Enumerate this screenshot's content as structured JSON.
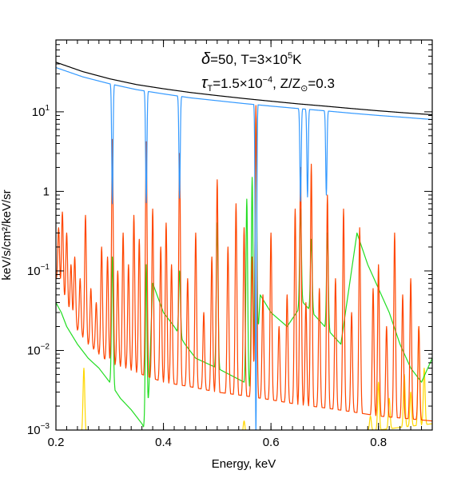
{
  "chart_data": {
    "type": "line",
    "title": "",
    "xlabel": "Energy, keV",
    "ylabel": "keV/s/cm²/keV/sr",
    "xlim": [
      0.2,
      0.9
    ],
    "ylim": [
      0.001,
      80
    ],
    "y_scale": "log",
    "grid": false,
    "legend": "none",
    "x_ticks": [
      {
        "value": 0.2,
        "label": "0.2"
      },
      {
        "value": 0.4,
        "label": "0.4"
      },
      {
        "value": 0.6,
        "label": "0.6"
      },
      {
        "value": 0.8,
        "label": "0.8"
      }
    ],
    "y_ticks": [
      {
        "value": 0.001,
        "base": "10",
        "exp": "−3"
      },
      {
        "value": 0.01,
        "base": "10",
        "exp": "−2"
      },
      {
        "value": 0.1,
        "base": "10",
        "exp": "−1"
      },
      {
        "value": 1,
        "base": "1",
        "exp": ""
      },
      {
        "value": 10,
        "base": "10",
        "exp": "1"
      }
    ],
    "annotations": {
      "line1": {
        "delta_symbol": "δ",
        "delta_value": "=50,  T=3×10",
        "T_exp": "5",
        "T_unit": "K"
      },
      "line2": {
        "tau_symbol": "τ",
        "tau_sub": "T",
        "tau_value": "=1.5×10",
        "tau_exp": "−4",
        "z_text": ",  Z/Z",
        "z_sub": "⊙",
        "z_value": "=0.3"
      }
    },
    "series": [
      {
        "color": "#000000",
        "style": "smooth",
        "x": [
          0.2,
          0.25,
          0.3,
          0.35,
          0.4,
          0.45,
          0.5,
          0.55,
          0.6,
          0.65,
          0.7,
          0.75,
          0.8,
          0.85,
          0.9
        ],
        "values": [
          42,
          32,
          26,
          22,
          19.5,
          17.5,
          16,
          14.7,
          13.6,
          12.6,
          11.8,
          11,
          10.3,
          9.7,
          9.2
        ]
      },
      {
        "color": "#3399ff",
        "style": "smooth",
        "x": [
          0.2,
          0.25,
          0.3,
          0.35,
          0.4,
          0.45,
          0.5,
          0.55,
          0.6,
          0.65,
          0.7,
          0.75,
          0.8,
          0.85,
          0.9
        ],
        "values": [
          36,
          27.5,
          22.5,
          19,
          16.8,
          15,
          13.8,
          12.7,
          11.8,
          11,
          10.3,
          9.6,
          9,
          8.5,
          8
        ],
        "lines": [
          {
            "x": 0.305,
            "value": 0.7
          },
          {
            "x": 0.368,
            "value": 0.72
          },
          {
            "x": 0.43,
            "value": 0.82
          },
          {
            "x": 0.572,
            "value": 0.0008
          },
          {
            "x": 0.655,
            "value": 0.75
          },
          {
            "x": 0.668,
            "value": 0.85
          },
          {
            "x": 0.703,
            "value": 0.9
          }
        ]
      },
      {
        "color": "#ff4500",
        "style": "lines",
        "x": [
          0.2,
          0.22,
          0.24,
          0.26,
          0.28,
          0.3,
          0.33,
          0.36,
          0.4,
          0.45,
          0.5,
          0.55,
          0.6,
          0.65,
          0.7,
          0.75,
          0.8,
          0.85,
          0.9
        ],
        "values": [
          0.08,
          0.035,
          0.018,
          0.012,
          0.009,
          0.007,
          0.006,
          0.005,
          0.004,
          0.0035,
          0.003,
          0.0027,
          0.0024,
          0.0021,
          0.0019,
          0.0017,
          0.0015,
          0.0014,
          0.0013
        ],
        "lines": [
          {
            "x": 0.205,
            "value": 0.35
          },
          {
            "x": 0.212,
            "value": 0.55
          },
          {
            "x": 0.22,
            "value": 0.3
          },
          {
            "x": 0.228,
            "value": 0.12
          },
          {
            "x": 0.235,
            "value": 0.15
          },
          {
            "x": 0.245,
            "value": 0.08
          },
          {
            "x": 0.255,
            "value": 0.5
          },
          {
            "x": 0.265,
            "value": 0.06
          },
          {
            "x": 0.275,
            "value": 0.04
          },
          {
            "x": 0.285,
            "value": 0.2
          },
          {
            "x": 0.296,
            "value": 0.15
          },
          {
            "x": 0.305,
            "value": 4.5
          },
          {
            "x": 0.315,
            "value": 0.1
          },
          {
            "x": 0.325,
            "value": 0.3
          },
          {
            "x": 0.335,
            "value": 0.12
          },
          {
            "x": 0.345,
            "value": 0.5
          },
          {
            "x": 0.355,
            "value": 0.25
          },
          {
            "x": 0.368,
            "value": 4.2
          },
          {
            "x": 0.38,
            "value": 0.6
          },
          {
            "x": 0.395,
            "value": 0.2
          },
          {
            "x": 0.405,
            "value": 0.4
          },
          {
            "x": 0.415,
            "value": 0.12
          },
          {
            "x": 0.43,
            "value": 3.0
          },
          {
            "x": 0.445,
            "value": 0.08
          },
          {
            "x": 0.46,
            "value": 0.3
          },
          {
            "x": 0.475,
            "value": 0.03
          },
          {
            "x": 0.49,
            "value": 0.15
          },
          {
            "x": 0.5,
            "value": 1.4
          },
          {
            "x": 0.52,
            "value": 0.2
          },
          {
            "x": 0.535,
            "value": 0.7
          },
          {
            "x": 0.55,
            "value": 0.35
          },
          {
            "x": 0.565,
            "value": 0.15
          },
          {
            "x": 0.572,
            "value": 12
          },
          {
            "x": 0.585,
            "value": 0.05
          },
          {
            "x": 0.6,
            "value": 0.3
          },
          {
            "x": 0.615,
            "value": 0.02
          },
          {
            "x": 0.63,
            "value": 0.05
          },
          {
            "x": 0.645,
            "value": 0.6
          },
          {
            "x": 0.655,
            "value": 2.0
          },
          {
            "x": 0.665,
            "value": 0.04
          },
          {
            "x": 0.675,
            "value": 2.2
          },
          {
            "x": 0.69,
            "value": 0.06
          },
          {
            "x": 0.705,
            "value": 0.9
          },
          {
            "x": 0.72,
            "value": 0.08
          },
          {
            "x": 0.735,
            "value": 0.6
          },
          {
            "x": 0.75,
            "value": 0.03
          },
          {
            "x": 0.765,
            "value": 0.35
          },
          {
            "x": 0.79,
            "value": 0.06
          },
          {
            "x": 0.8,
            "value": 0.12
          },
          {
            "x": 0.815,
            "value": 0.02
          },
          {
            "x": 0.83,
            "value": 0.3
          },
          {
            "x": 0.845,
            "value": 0.05
          },
          {
            "x": 0.86,
            "value": 0.08
          },
          {
            "x": 0.875,
            "value": 0.02
          }
        ]
      },
      {
        "color": "#22dd22",
        "style": "lines",
        "x": [
          0.2,
          0.21,
          0.22,
          0.24,
          0.26,
          0.28,
          0.3,
          0.32,
          0.34,
          0.36,
          0.37,
          0.38,
          0.4,
          0.42,
          0.44,
          0.46,
          0.5,
          0.55,
          0.57,
          0.58,
          0.6,
          0.63,
          0.66,
          0.7,
          0.73,
          0.76,
          0.78,
          0.8,
          0.82,
          0.84,
          0.86,
          0.88,
          0.9
        ],
        "values": [
          0.04,
          0.03,
          0.02,
          0.012,
          0.008,
          0.006,
          0.004,
          0.0025,
          0.0018,
          0.0012,
          0.0009,
          0.07,
          0.03,
          0.02,
          0.012,
          0.008,
          0.006,
          0.004,
          0.0032,
          0.05,
          0.03,
          0.02,
          0.04,
          0.02,
          0.012,
          0.3,
          0.12,
          0.06,
          0.03,
          0.012,
          0.006,
          0.004,
          0.008
        ],
        "lines": [
          {
            "x": 0.305,
            "value": 0.15
          },
          {
            "x": 0.368,
            "value": 0.12
          },
          {
            "x": 0.43,
            "value": 0.1
          },
          {
            "x": 0.5,
            "value": 0.4
          },
          {
            "x": 0.555,
            "value": 0.8
          },
          {
            "x": 0.565,
            "value": 1.5
          },
          {
            "x": 0.572,
            "value": 10
          },
          {
            "x": 0.655,
            "value": 0.6
          },
          {
            "x": 0.675,
            "value": 0.25
          },
          {
            "x": 0.705,
            "value": 0.3
          }
        ]
      },
      {
        "color": "#ffd700",
        "style": "lines",
        "x": [
          0.2,
          0.25,
          0.3,
          0.5,
          0.55,
          0.8,
          0.85,
          0.9
        ],
        "values": [
          0.0008,
          0.0009,
          0.0008,
          0.0008,
          0.0009,
          0.001,
          0.0011,
          0.0012
        ],
        "lines": [
          {
            "x": 0.252,
            "value": 0.006
          },
          {
            "x": 0.55,
            "value": 0.0013
          },
          {
            "x": 0.785,
            "value": 0.0015
          },
          {
            "x": 0.8,
            "value": 0.004
          },
          {
            "x": 0.82,
            "value": 0.0025
          },
          {
            "x": 0.848,
            "value": 0.005
          },
          {
            "x": 0.86,
            "value": 0.003
          },
          {
            "x": 0.875,
            "value": 0.02
          },
          {
            "x": 0.885,
            "value": 0.006
          }
        ]
      }
    ]
  }
}
